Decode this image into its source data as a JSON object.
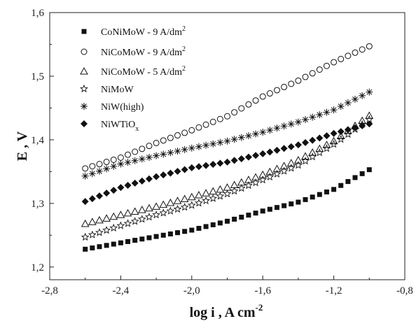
{
  "chart_data": {
    "type": "scatter",
    "xlabel": "log i ,  A cm",
    "xlabel_sup": "-2",
    "ylabel": "E ,  V",
    "xlim": [
      -2.8,
      -0.8
    ],
    "ylim": [
      1.18,
      1.6
    ],
    "x_ticks": [
      -2.8,
      -2.4,
      -2.0,
      -1.6,
      -1.2,
      -0.8
    ],
    "x_tick_labels": [
      "-2,8",
      "-2,4",
      "-2,0",
      "-1,6",
      "-1,2",
      "-0,8"
    ],
    "y_ticks": [
      1.2,
      1.3,
      1.4,
      1.5,
      1.6
    ],
    "y_tick_labels": [
      "1,2",
      "1,3",
      "1,4",
      "1,5",
      "1,6"
    ],
    "grid": false,
    "legend_position": "top-left",
    "series": [
      {
        "name": "CoNiMoW - 9 A/dm",
        "name_sup": "2",
        "marker": "filled-square",
        "x": [
          -2.6,
          -2.4,
          -2.2,
          -2.0,
          -1.8,
          -1.6,
          -1.4,
          -1.2,
          -1.0
        ],
        "y": [
          1.228,
          1.238,
          1.248,
          1.258,
          1.272,
          1.288,
          1.302,
          1.322,
          1.353
        ]
      },
      {
        "name": "NiCoMoW - 9 A/dm",
        "name_sup": "2",
        "marker": "open-circle",
        "x": [
          -2.6,
          -2.4,
          -2.2,
          -2.0,
          -1.8,
          -1.6,
          -1.4,
          -1.2,
          -1.0
        ],
        "y": [
          1.355,
          1.372,
          1.395,
          1.415,
          1.437,
          1.468,
          1.493,
          1.522,
          1.547
        ]
      },
      {
        "name": "NiCoMoW - 5 A/dm",
        "name_sup": "2",
        "marker": "open-triangle",
        "x": [
          -2.6,
          -2.4,
          -2.2,
          -2.0,
          -1.8,
          -1.6,
          -1.4,
          -1.2,
          -1.0
        ],
        "y": [
          1.268,
          1.282,
          1.295,
          1.31,
          1.325,
          1.345,
          1.368,
          1.398,
          1.438
        ]
      },
      {
        "name": "NiMoW",
        "marker": "open-star",
        "x": [
          -2.6,
          -2.4,
          -2.2,
          -2.0,
          -1.8,
          -1.6,
          -1.4,
          -1.2,
          -1.0
        ],
        "y": [
          1.247,
          1.265,
          1.282,
          1.297,
          1.315,
          1.337,
          1.36,
          1.393,
          1.432
        ]
      },
      {
        "name": "NiW(high)",
        "marker": "asterisk",
        "x": [
          -2.6,
          -2.4,
          -2.2,
          -2.0,
          -1.8,
          -1.6,
          -1.4,
          -1.2,
          -1.0
        ],
        "y": [
          1.343,
          1.362,
          1.375,
          1.387,
          1.398,
          1.412,
          1.428,
          1.447,
          1.475
        ]
      },
      {
        "name": "NiWTiO",
        "name_sub": "x",
        "marker": "filled-diamond",
        "x": [
          -2.6,
          -2.4,
          -2.2,
          -2.0,
          -1.8,
          -1.6,
          -1.4,
          -1.2,
          -1.0
        ],
        "y": [
          1.303,
          1.325,
          1.342,
          1.356,
          1.365,
          1.378,
          1.392,
          1.41,
          1.425
        ]
      }
    ]
  }
}
